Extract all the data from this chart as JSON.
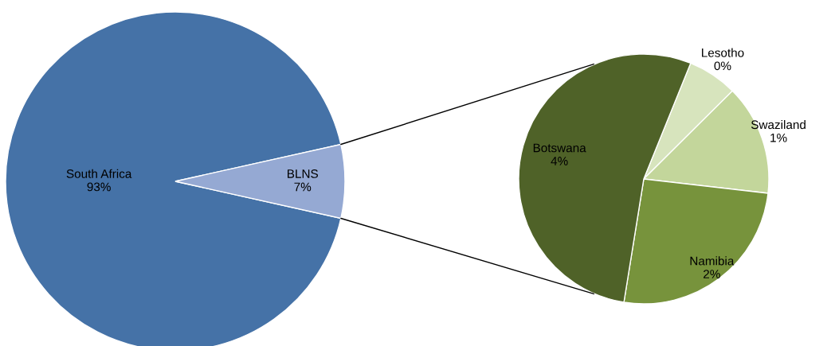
{
  "chart_data": [
    {
      "type": "pie",
      "categories": [
        "South Africa",
        "BLNS"
      ],
      "values": [
        93,
        7
      ],
      "colors": [
        "#4572a7",
        "#95a9d3"
      ],
      "value_labels": [
        "93%",
        "7%"
      ]
    },
    {
      "type": "pie",
      "categories": [
        "Lesotho",
        "Swaziland",
        "Namibia",
        "Botswana"
      ],
      "values": [
        0.45,
        1.0,
        1.8,
        3.75
      ],
      "colors": [
        "#d7e4bd",
        "#c3d69b",
        "#77933c",
        "#4f6228"
      ],
      "value_labels": [
        "0%",
        "1%",
        "2%",
        "4%"
      ]
    }
  ]
}
